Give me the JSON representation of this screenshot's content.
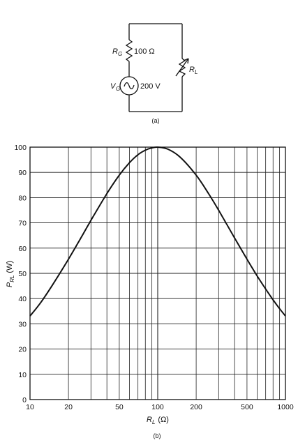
{
  "figure": {
    "circuit": {
      "resistor_rg_label": "R",
      "resistor_rg_subscript": "G",
      "resistor_rg_value": "100 Ω",
      "source_label": "V",
      "source_subscript": "G",
      "source_value": "200 V",
      "load_label": "R",
      "load_subscript": "L",
      "caption": "(a)"
    },
    "plot_caption": "(b)"
  },
  "chart_data": {
    "type": "line",
    "xscale": "log",
    "xlim": [
      10,
      1000
    ],
    "ylim": [
      0,
      100
    ],
    "grid": true,
    "x_ticks": [
      "10",
      "20",
      "50",
      "100",
      "200",
      "500",
      "1000"
    ],
    "y_ticks": [
      "0",
      "10",
      "20",
      "30",
      "40",
      "50",
      "60",
      "70",
      "80",
      "90",
      "100"
    ],
    "xlabel_main": "R",
    "xlabel_sub": "L",
    "xlabel_unit": "(Ω)",
    "ylabel_main": "P",
    "ylabel_sub": "RL",
    "ylabel_unit": "(W)",
    "series": [
      {
        "x": [
          10,
          12,
          15,
          20,
          25,
          30,
          40,
          50,
          60,
          70,
          80,
          90,
          100,
          120,
          150,
          200,
          250,
          300,
          400,
          500,
          600,
          700,
          800,
          900,
          1000
        ],
        "y": [
          33.1,
          38.1,
          45.4,
          55.6,
          64.0,
          71.0,
          81.6,
          88.9,
          93.8,
          97.0,
          98.8,
          99.7,
          100.0,
          99.2,
          96.0,
          88.9,
          81.6,
          75.0,
          64.0,
          55.6,
          49.0,
          43.8,
          39.5,
          36.0,
          33.1
        ]
      }
    ]
  }
}
